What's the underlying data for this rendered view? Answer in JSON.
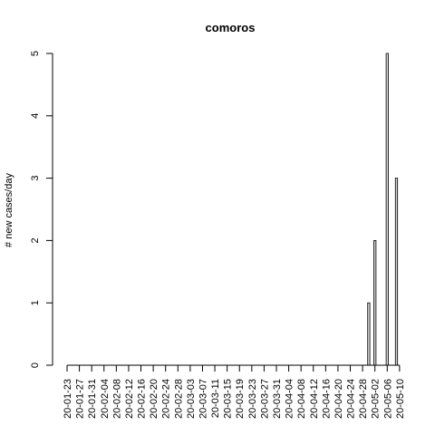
{
  "chart_data": {
    "type": "bar",
    "title": "comoros",
    "xlabel": "",
    "ylabel": "# new cases/day",
    "ylim": [
      0,
      5
    ],
    "yticks": [
      0,
      1,
      2,
      3,
      4,
      5
    ],
    "grid": false,
    "legend": "none",
    "bar_fill": "#d3d3d3",
    "bar_stroke": "#000000",
    "x_tick_labels": [
      "20-01-23",
      "20-01-27",
      "20-01-31",
      "20-02-04",
      "20-02-08",
      "20-02-12",
      "20-02-16",
      "20-02-20",
      "20-02-24",
      "20-02-28",
      "20-03-03",
      "20-03-07",
      "20-03-11",
      "20-03-15",
      "20-03-19",
      "20-03-23",
      "20-03-27",
      "20-03-31",
      "20-04-04",
      "20-04-08",
      "20-04-12",
      "20-04-16",
      "20-04-20",
      "20-04-24",
      "20-04-28",
      "20-05-02",
      "20-05-06",
      "20-05-10"
    ],
    "categories": [
      "20-01-23",
      "20-01-24",
      "20-01-25",
      "20-01-26",
      "20-01-27",
      "20-01-28",
      "20-01-29",
      "20-01-30",
      "20-01-31",
      "20-02-01",
      "20-02-02",
      "20-02-03",
      "20-02-04",
      "20-02-05",
      "20-02-06",
      "20-02-07",
      "20-02-08",
      "20-02-09",
      "20-02-10",
      "20-02-11",
      "20-02-12",
      "20-02-13",
      "20-02-14",
      "20-02-15",
      "20-02-16",
      "20-02-17",
      "20-02-18",
      "20-02-19",
      "20-02-20",
      "20-02-21",
      "20-02-22",
      "20-02-23",
      "20-02-24",
      "20-02-25",
      "20-02-26",
      "20-02-27",
      "20-02-28",
      "20-02-29",
      "20-03-01",
      "20-03-02",
      "20-03-03",
      "20-03-04",
      "20-03-05",
      "20-03-06",
      "20-03-07",
      "20-03-08",
      "20-03-09",
      "20-03-10",
      "20-03-11",
      "20-03-12",
      "20-03-13",
      "20-03-14",
      "20-03-15",
      "20-03-16",
      "20-03-17",
      "20-03-18",
      "20-03-19",
      "20-03-20",
      "20-03-21",
      "20-03-22",
      "20-03-23",
      "20-03-24",
      "20-03-25",
      "20-03-26",
      "20-03-27",
      "20-03-28",
      "20-03-29",
      "20-03-30",
      "20-03-31",
      "20-04-01",
      "20-04-02",
      "20-04-03",
      "20-04-04",
      "20-04-05",
      "20-04-06",
      "20-04-07",
      "20-04-08",
      "20-04-09",
      "20-04-10",
      "20-04-11",
      "20-04-12",
      "20-04-13",
      "20-04-14",
      "20-04-15",
      "20-04-16",
      "20-04-17",
      "20-04-18",
      "20-04-19",
      "20-04-20",
      "20-04-21",
      "20-04-22",
      "20-04-23",
      "20-04-24",
      "20-04-25",
      "20-04-26",
      "20-04-27",
      "20-04-28",
      "20-04-29",
      "20-04-30",
      "20-05-01",
      "20-05-02",
      "20-05-03",
      "20-05-04",
      "20-05-05",
      "20-05-06",
      "20-05-07",
      "20-05-08",
      "20-05-09",
      "20-05-10"
    ],
    "values": [
      0,
      0,
      0,
      0,
      0,
      0,
      0,
      0,
      0,
      0,
      0,
      0,
      0,
      0,
      0,
      0,
      0,
      0,
      0,
      0,
      0,
      0,
      0,
      0,
      0,
      0,
      0,
      0,
      0,
      0,
      0,
      0,
      0,
      0,
      0,
      0,
      0,
      0,
      0,
      0,
      0,
      0,
      0,
      0,
      0,
      0,
      0,
      0,
      0,
      0,
      0,
      0,
      0,
      0,
      0,
      0,
      0,
      0,
      0,
      0,
      0,
      0,
      0,
      0,
      0,
      0,
      0,
      0,
      0,
      0,
      0,
      0,
      0,
      0,
      0,
      0,
      0,
      0,
      0,
      0,
      0,
      0,
      0,
      0,
      0,
      0,
      0,
      0,
      0,
      0,
      0,
      0,
      0,
      0,
      0,
      0,
      0,
      0,
      1,
      0,
      2,
      0,
      0,
      0,
      5,
      0,
      0,
      3,
      0
    ]
  }
}
